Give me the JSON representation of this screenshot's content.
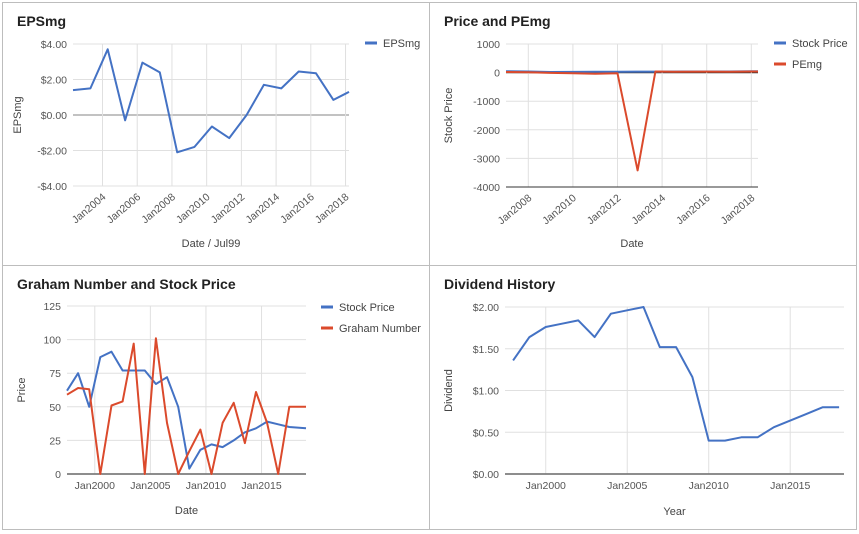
{
  "colors": {
    "blue": "#4472c4",
    "red": "#db4a2c",
    "grid": "#e0e0e0",
    "axis": "#333333",
    "zero": "#9e9e9e",
    "text": "#555555"
  },
  "chart_data": [
    {
      "type": "line",
      "title": "EPSmg",
      "xlabel": "Date / Jul99",
      "ylabel": "EPSmg",
      "legend_position": "top-right",
      "xlim": [
        2002.3,
        2018.2
      ],
      "ylim": [
        -4,
        4
      ],
      "x_ticks": [
        2004,
        2006,
        2008,
        2010,
        2012,
        2014,
        2016,
        2018
      ],
      "x_tick_labels": [
        "Jan2004",
        "Jan2006",
        "Jan2008",
        "Jan2010",
        "Jan2012",
        "Jan2014",
        "Jan2016",
        "Jan2018"
      ],
      "y_ticks": [
        -4,
        -2,
        0,
        2,
        4
      ],
      "y_tick_labels": [
        "-$4.00",
        "-$2.00",
        "$0.00",
        "$2.00",
        "$4.00"
      ],
      "grid": true,
      "series": [
        {
          "name": "EPSmg",
          "color": "#4472c4",
          "x": [
            2002.3,
            2003.3,
            2004.3,
            2005.3,
            2006.3,
            2007.3,
            2008.3,
            2009.3,
            2010.3,
            2011.3,
            2012.3,
            2013.3,
            2014.3,
            2015.3,
            2016.3,
            2017.3,
            2018.0,
            2018.2
          ],
          "y": [
            1.4,
            1.5,
            3.7,
            -0.3,
            2.95,
            2.4,
            -2.1,
            -1.8,
            -0.65,
            -1.3,
            0.0,
            1.7,
            1.5,
            2.45,
            2.35,
            0.85,
            1.2,
            1.3
          ]
        }
      ]
    },
    {
      "type": "line",
      "title": "Price and PEmg",
      "xlabel": "Date",
      "ylabel": "Stock Price",
      "legend_position": "top-right",
      "xlim": [
        2007.0,
        2018.3
      ],
      "ylim": [
        -4000,
        1000
      ],
      "x_ticks": [
        2008,
        2010,
        2012,
        2014,
        2016,
        2018
      ],
      "x_tick_labels": [
        "Jan2008",
        "Jan2010",
        "Jan2012",
        "Jan2014",
        "Jan2016",
        "Jan2018"
      ],
      "y_ticks": [
        -4000,
        -3000,
        -2000,
        -1000,
        0,
        1000
      ],
      "y_tick_labels": [
        "-4000",
        "-3000",
        "-2000",
        "-1000",
        "0",
        "1000"
      ],
      "grid": true,
      "series": [
        {
          "name": "Stock Price",
          "color": "#4472c4",
          "x": [
            2007.0,
            2008.0,
            2009.0,
            2010.0,
            2011.0,
            2012.0,
            2013.0,
            2014.0,
            2015.0,
            2016.0,
            2017.0,
            2018.0,
            2018.3
          ],
          "y": [
            50,
            40,
            20,
            25,
            30,
            30,
            35,
            35,
            38,
            40,
            40,
            45,
            45
          ]
        },
        {
          "name": "PEmg",
          "color": "#db4a2c",
          "x": [
            2007.0,
            2008.0,
            2009.0,
            2010.0,
            2011.0,
            2012.0,
            2012.9,
            2013.7,
            2014.5,
            2016.0,
            2017.0,
            2018.0,
            2018.3
          ],
          "y": [
            20,
            15,
            -10,
            -20,
            -40,
            -25,
            -3420,
            40,
            30,
            35,
            30,
            40,
            40
          ]
        }
      ]
    },
    {
      "type": "line",
      "title": "Graham Number and Stock Price",
      "xlabel": "Date",
      "ylabel": "Price",
      "legend_position": "top-right",
      "xlim": [
        1997.5,
        2019.0
      ],
      "ylim": [
        0,
        125
      ],
      "x_ticks": [
        2000,
        2005,
        2010,
        2015
      ],
      "x_tick_labels": [
        "Jan2000",
        "Jan2005",
        "Jan2010",
        "Jan2015"
      ],
      "y_ticks": [
        0,
        25,
        50,
        75,
        100,
        125
      ],
      "y_tick_labels": [
        "0",
        "25",
        "50",
        "75",
        "100",
        "125"
      ],
      "grid": true,
      "series": [
        {
          "name": "Stock Price",
          "color": "#4472c4",
          "x": [
            1997.5,
            1998.5,
            1999.5,
            2000.5,
            2001.5,
            2002.5,
            2003.5,
            2004.5,
            2005.5,
            2006.5,
            2007.5,
            2008.5,
            2009.5,
            2010.5,
            2011.5,
            2012.5,
            2013.5,
            2014.5,
            2015.5,
            2016.5,
            2017.5,
            2019.0
          ],
          "y": [
            62,
            75,
            50,
            87,
            91,
            77,
            77,
            77,
            67,
            72,
            50,
            4,
            18,
            22,
            20,
            25,
            31,
            34,
            39,
            37,
            35,
            34
          ]
        },
        {
          "name": "Graham Number",
          "color": "#db4a2c",
          "x": [
            1997.5,
            1998.5,
            1999.5,
            2000.5,
            2001.5,
            2002.5,
            2003.5,
            2004.5,
            2005.5,
            2006.5,
            2007.5,
            2008.5,
            2009.5,
            2010.5,
            2011.5,
            2012.5,
            2013.5,
            2014.5,
            2015.5,
            2016.5,
            2017.5,
            2019.0
          ],
          "y": [
            59,
            64,
            63,
            0,
            51,
            54,
            97,
            0,
            101,
            38,
            0,
            17,
            33,
            0,
            38,
            53,
            23,
            61,
            38,
            0,
            50,
            50
          ]
        }
      ]
    },
    {
      "type": "line",
      "title": "Dividend History",
      "xlabel": "Year",
      "ylabel": "Dividend",
      "legend_position": "none",
      "xlim": [
        1997.5,
        2018.3
      ],
      "ylim": [
        0,
        2
      ],
      "x_ticks": [
        2000,
        2005,
        2010,
        2015
      ],
      "x_tick_labels": [
        "Jan2000",
        "Jan2005",
        "Jan2010",
        "Jan2015"
      ],
      "y_ticks": [
        0,
        0.5,
        1.0,
        1.5,
        2.0
      ],
      "y_tick_labels": [
        "$0.00",
        "$0.50",
        "$1.00",
        "$1.50",
        "$2.00"
      ],
      "grid": true,
      "series": [
        {
          "name": "",
          "color": "#4472c4",
          "x": [
            1998.0,
            1999.0,
            2000.0,
            2001.0,
            2002.0,
            2003.0,
            2004.0,
            2005.0,
            2006.0,
            2007.0,
            2008.0,
            2009.0,
            2010.0,
            2011.0,
            2012.0,
            2013.0,
            2014.0,
            2015.0,
            2016.0,
            2017.0,
            2018.0
          ],
          "y": [
            1.36,
            1.64,
            1.76,
            1.8,
            1.84,
            1.64,
            1.92,
            1.96,
            2.0,
            1.52,
            1.52,
            1.16,
            0.4,
            0.4,
            0.44,
            0.44,
            0.56,
            0.64,
            0.72,
            0.8,
            0.8
          ]
        }
      ]
    }
  ]
}
